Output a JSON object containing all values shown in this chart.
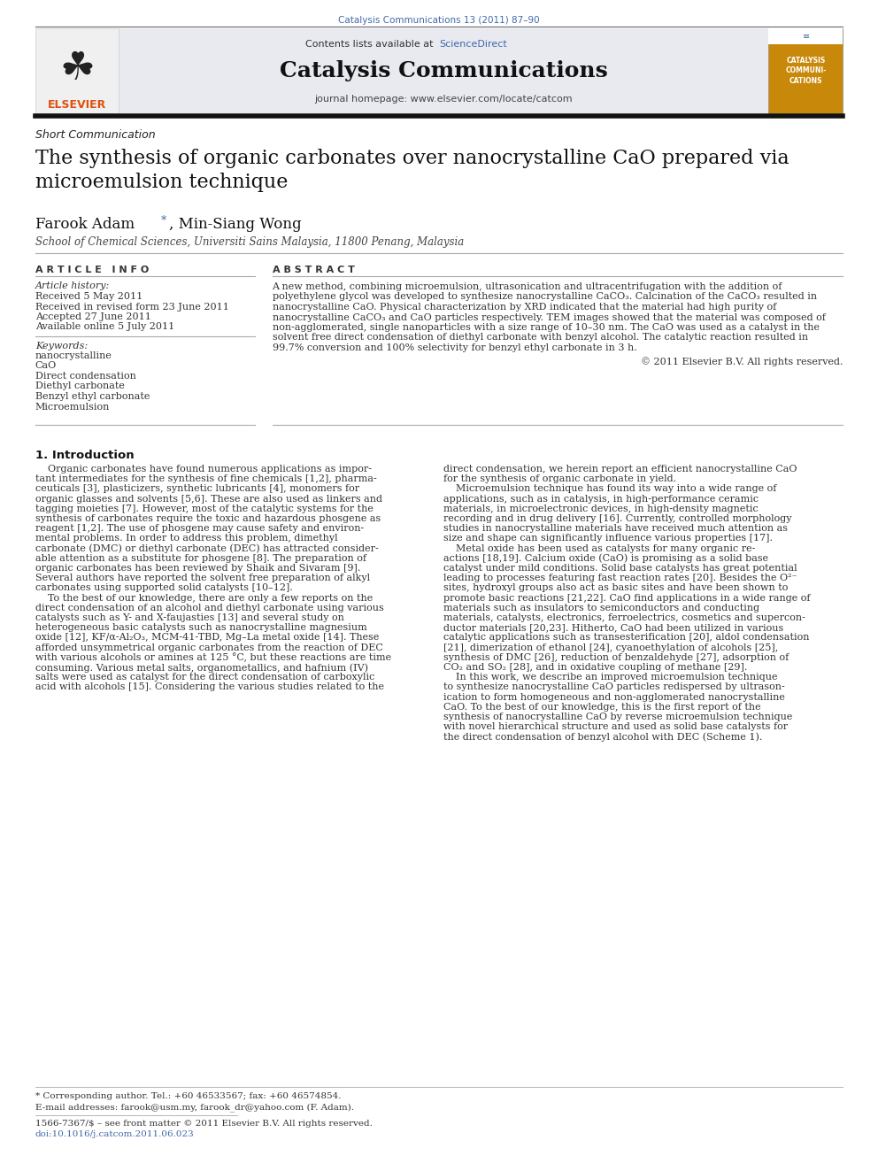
{
  "page_width": 9.92,
  "page_height": 13.23,
  "background_color": "#ffffff",
  "journal_ref": "Catalysis Communications 13 (2011) 87–90",
  "journal_ref_color": "#4169aa",
  "sciencedirect_color": "#4169aa",
  "journal_name": "Catalysis Communications",
  "journal_homepage": "journal homepage: www.elsevier.com/locate/catcom",
  "article_type": "Short Communication",
  "title": "The synthesis of organic carbonates over nanocrystalline CaO prepared via\nmicroemulsion technique",
  "affiliation": "School of Chemical Sciences, Universiti Sains Malaysia, 11800 Penang, Malaysia",
  "article_info_header": "A R T I C L E   I N F O",
  "abstract_header": "A B S T R A C T",
  "article_history_label": "Article history:",
  "received": "Received 5 May 2011",
  "received_revised": "Received in revised form 23 June 2011",
  "accepted": "Accepted 27 June 2011",
  "available": "Available online 5 July 2011",
  "keywords_label": "Keywords:",
  "keywords": [
    "nanocrystalline",
    "CaO",
    "Direct condensation",
    "Diethyl carbonate",
    "Benzyl ethyl carbonate",
    "Microemulsion"
  ],
  "abstract_text": "A new method, combining microemulsion, ultrasonication and ultracentrifugation with the addition of\npolyethylene glycol was developed to synthesize nanocrystalline CaCO₃. Calcination of the CaCO₃ resulted in\nnanocrystalline CaO. Physical characterization by XRD indicated that the material had high purity of\nnanocrystalline CaCO₃ and CaO particles respectively. TEM images showed that the material was composed of\nnon-agglomerated, single nanoparticles with a size range of 10–30 nm. The CaO was used as a catalyst in the\nsolvent free direct condensation of diethyl carbonate with benzyl alcohol. The catalytic reaction resulted in\n99.7% conversion and 100% selectivity for benzyl ethyl carbonate in 3 h.",
  "copyright": "© 2011 Elsevier B.V. All rights reserved.",
  "intro_header": "1. Introduction",
  "intro_col1_lines": [
    "    Organic carbonates have found numerous applications as impor-",
    "tant intermediates for the synthesis of fine chemicals [1,2], pharma-",
    "ceuticals [3], plasticizers, synthetic lubricants [4], monomers for",
    "organic glasses and solvents [5,6]. These are also used as linkers and",
    "tagging moieties [7]. However, most of the catalytic systems for the",
    "synthesis of carbonates require the toxic and hazardous phosgene as",
    "reagent [1,2]. The use of phosgene may cause safety and environ-",
    "mental problems. In order to address this problem, dimethyl",
    "carbonate (DMC) or diethyl carbonate (DEC) has attracted consider-",
    "able attention as a substitute for phosgene [8]. The preparation of",
    "organic carbonates has been reviewed by Shaik and Sivaram [9].",
    "Several authors have reported the solvent free preparation of alkyl",
    "carbonates using supported solid catalysts [10–12].",
    "    To the best of our knowledge, there are only a few reports on the",
    "direct condensation of an alcohol and diethyl carbonate using various",
    "catalysts such as Y- and X-faujasties [13] and several study on",
    "heterogeneous basic catalysts such as nanocrystalline magnesium",
    "oxide [12], KF/α-Al₂O₃, MCM-41-TBD, Mg–La metal oxide [14]. These",
    "afforded unsymmetrical organic carbonates from the reaction of DEC",
    "with various alcohols or amines at 125 °C, but these reactions are time",
    "consuming. Various metal salts, organometallics, and hafnium (IV)",
    "salts were used as catalyst for the direct condensation of carboxylic",
    "acid with alcohols [15]. Considering the various studies related to the"
  ],
  "intro_col2_lines": [
    "direct condensation, we herein report an efficient nanocrystalline CaO",
    "for the synthesis of organic carbonate in yield.",
    "    Microemulsion technique has found its way into a wide range of",
    "applications, such as in catalysis, in high-performance ceramic",
    "materials, in microelectronic devices, in high-density magnetic",
    "recording and in drug delivery [16]. Currently, controlled morphology",
    "studies in nanocrystalline materials have received much attention as",
    "size and shape can significantly influence various properties [17].",
    "    Metal oxide has been used as catalysts for many organic re-",
    "actions [18,19]. Calcium oxide (CaO) is promising as a solid base",
    "catalyst under mild conditions. Solid base catalysts has great potential",
    "leading to processes featuring fast reaction rates [20]. Besides the O²⁻",
    "sites, hydroxyl groups also act as basic sites and have been shown to",
    "promote basic reactions [21,22]. CaO find applications in a wide range of",
    "materials such as insulators to semiconductors and conducting",
    "materials, catalysts, electronics, ferroelectrics, cosmetics and supercon-",
    "ductor materials [20,23]. Hitherto, CaO had been utilized in various",
    "catalytic applications such as transesterification [20], aldol condensation",
    "[21], dimerization of ethanol [24], cyanoethylation of alcohols [25],",
    "synthesis of DMC [26], reduction of benzaldehyde [27], adsorption of",
    "CO₂ and SO₂ [28], and in oxidative coupling of methane [29].",
    "    In this work, we describe an improved microemulsion technique",
    "to synthesize nanocrystalline CaO particles redispersed by ultrason-",
    "ication to form homogeneous and non-agglomerated nanocrystalline",
    "CaO. To the best of our knowledge, this is the first report of the",
    "synthesis of nanocrystalline CaO by reverse microemulsion technique",
    "with novel hierarchical structure and used as solid base catalysts for",
    "the direct condensation of benzyl alcohol with DEC (Scheme 1)."
  ],
  "footnote_corr": "* Corresponding author. Tel.: +60 46533567; fax: +60 46574854.",
  "footnote_email": "E-mail addresses: farook@usm.my, farook_dr@yahoo.com (F. Adam).",
  "footnote_issn": "1566-7367/$ – see front matter © 2011 Elsevier B.V. All rights reserved.",
  "footnote_doi": "doi:10.1016/j.catcom.2011.06.023",
  "link_color": "#4169aa"
}
